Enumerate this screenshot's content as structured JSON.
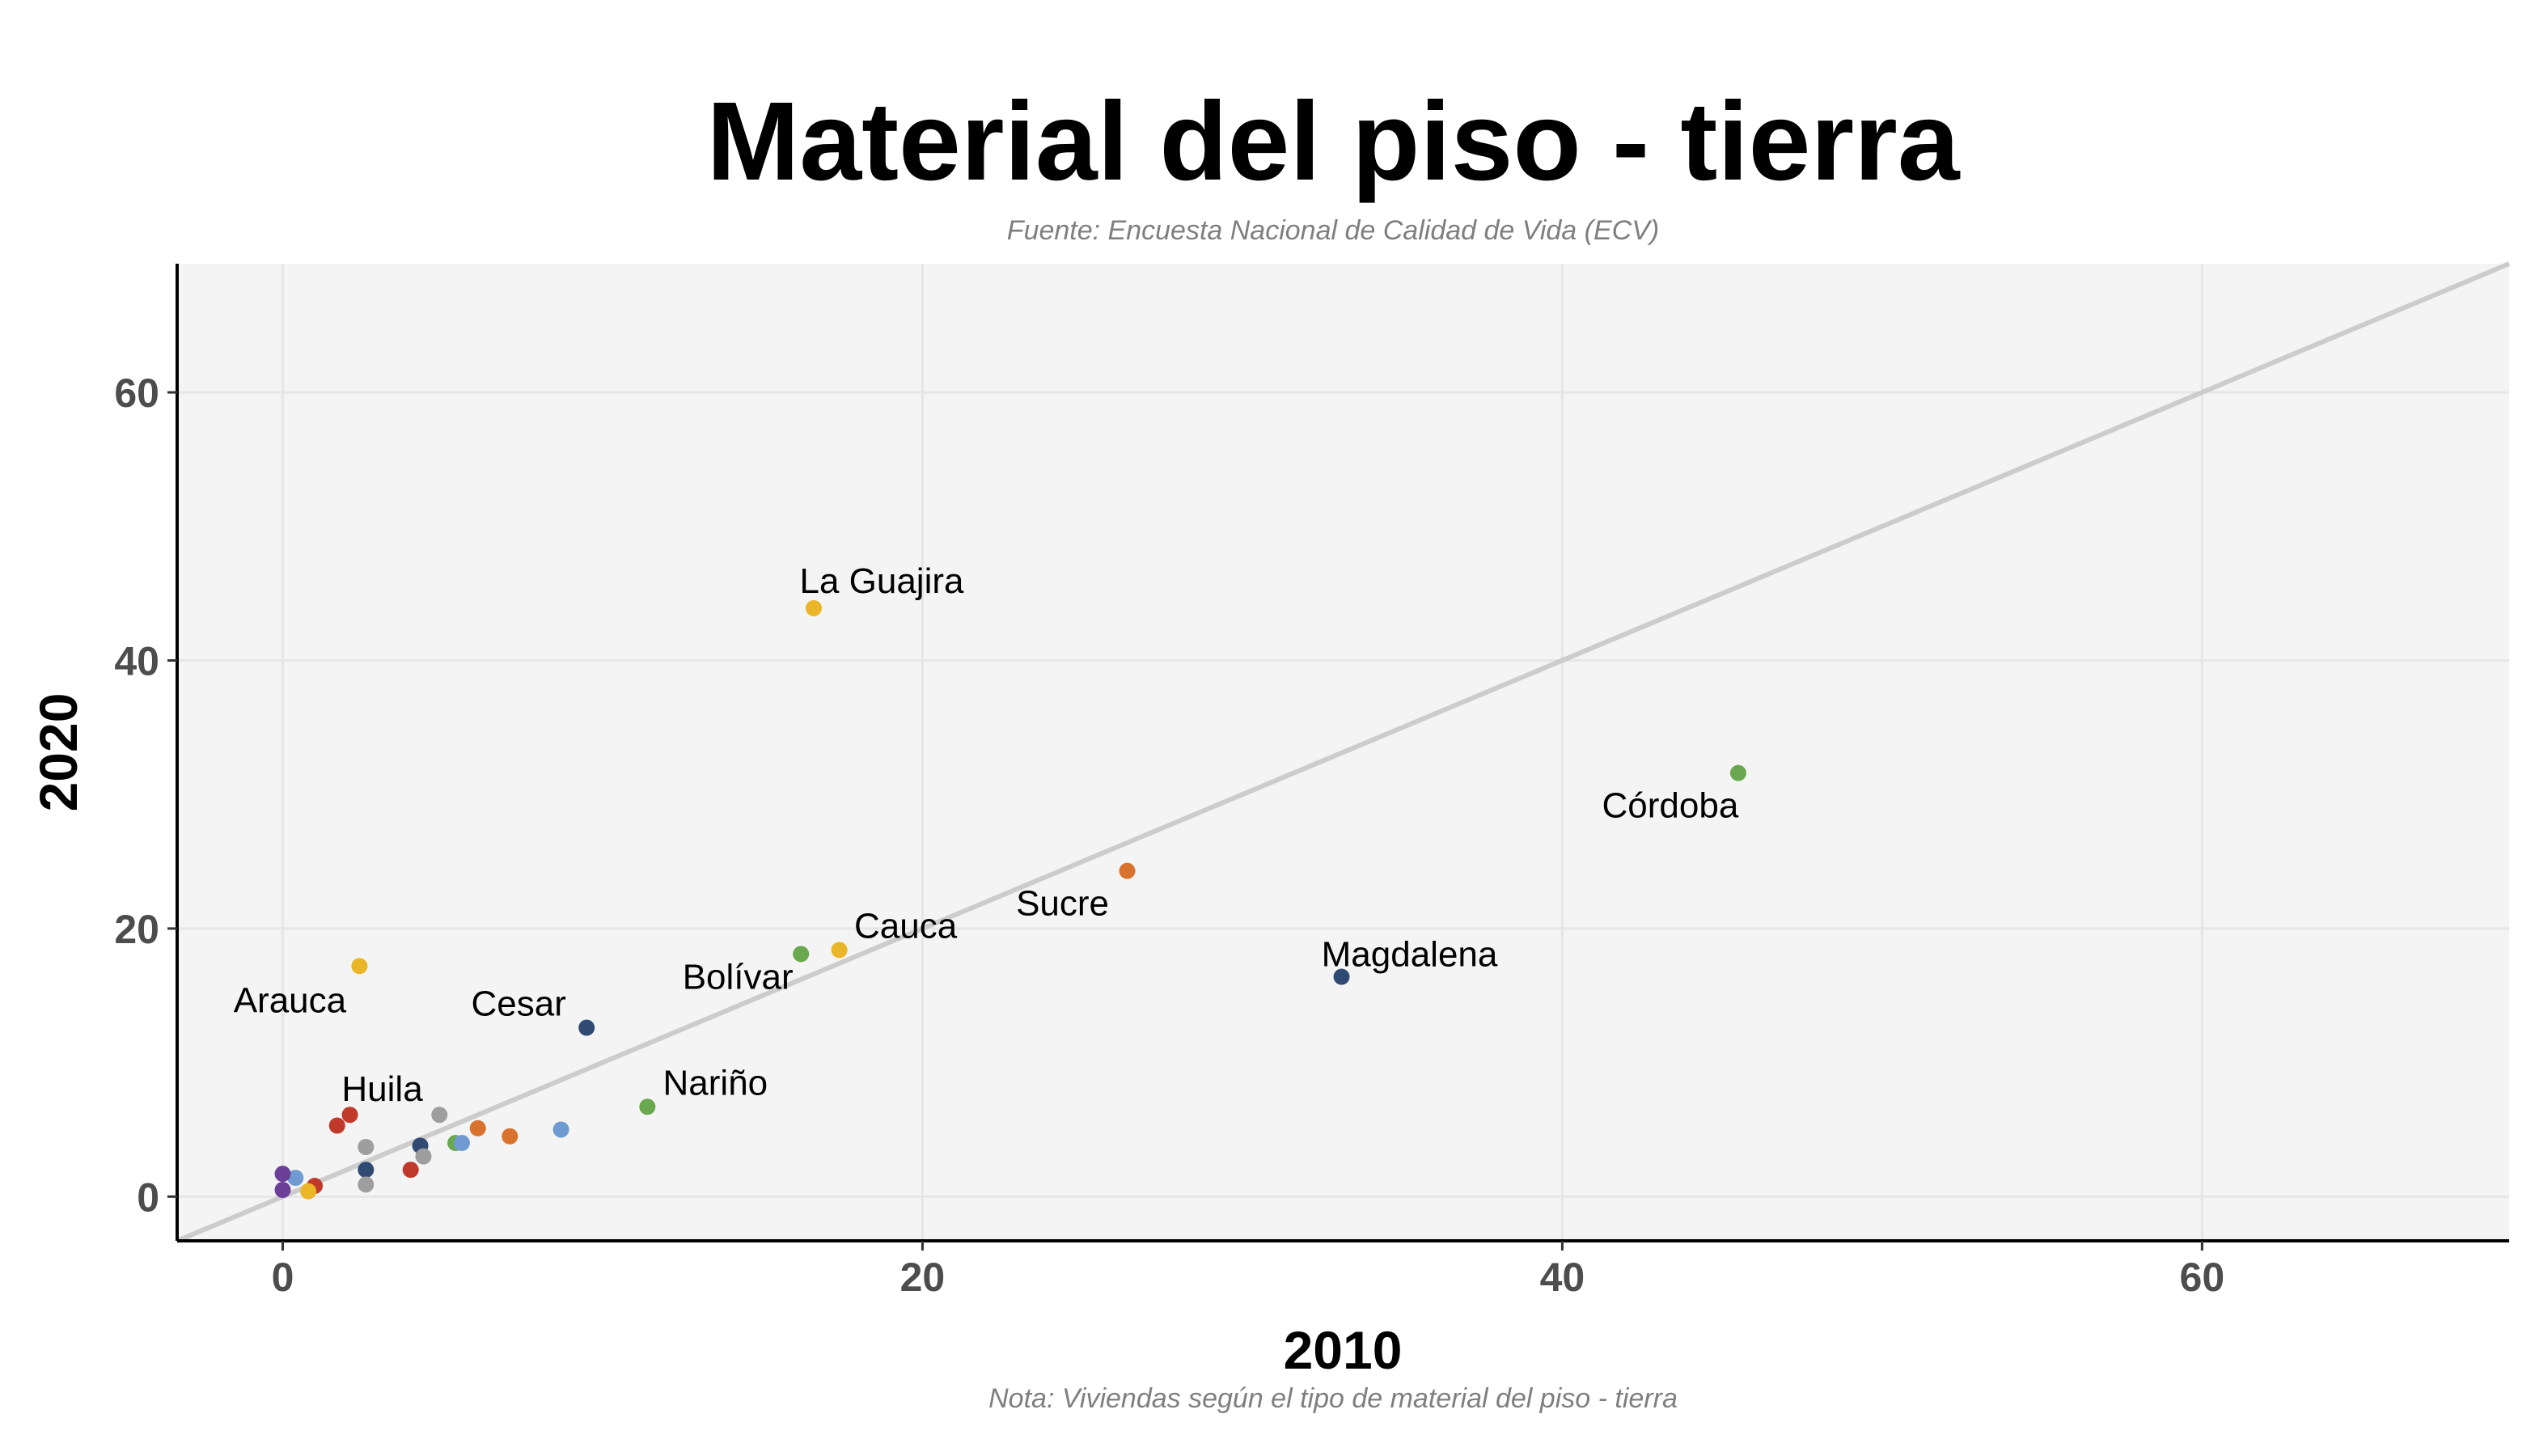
{
  "chart_data": {
    "type": "scatter",
    "title": "Material del piso - tierra",
    "subtitle": "Fuente: Encuesta Nacional de Calidad de Vida (ECV)",
    "caption": "Nota: Viviendas según el tipo de material del piso - tierra",
    "xlabel": "2010",
    "ylabel": "2020",
    "xlim": [
      -3.3,
      69.6
    ],
    "ylim": [
      -3.3,
      69.6
    ],
    "xticks": [
      0,
      20,
      40,
      60
    ],
    "yticks": [
      0,
      20,
      40,
      60
    ],
    "grid": true,
    "reference_line": {
      "slope": 1,
      "intercept": 0,
      "color": "#cccccc"
    },
    "background": "#f4f4f4",
    "points": [
      {
        "x": 16.6,
        "y": 43.9,
        "label": "La Guajira",
        "color": "#eab627"
      },
      {
        "x": 45.5,
        "y": 31.6,
        "label": "Córdoba",
        "color": "#6aa84f"
      },
      {
        "x": 26.4,
        "y": 24.3,
        "label": "Sucre",
        "color": "#d9722c"
      },
      {
        "x": 17.4,
        "y": 18.4,
        "label": "Cauca",
        "color": "#eab627"
      },
      {
        "x": 16.2,
        "y": 18.1,
        "label": "Bolívar",
        "color": "#6aa84f"
      },
      {
        "x": 33.1,
        "y": 16.4,
        "label": "Magdalena",
        "color": "#2f4b73"
      },
      {
        "x": 2.4,
        "y": 17.2,
        "label": "Arauca",
        "color": "#eab627"
      },
      {
        "x": 9.5,
        "y": 12.6,
        "label": "Cesar",
        "color": "#2f4b73"
      },
      {
        "x": 11.4,
        "y": 6.7,
        "label": "Nariño",
        "color": "#6aa84f"
      },
      {
        "x": 2.1,
        "y": 6.1,
        "label": "Huila",
        "color": "#c0392b"
      },
      {
        "x": 1.7,
        "y": 5.3,
        "label": "",
        "color": "#c0392b"
      },
      {
        "x": 4.9,
        "y": 6.1,
        "label": "",
        "color": "#9e9e9e"
      },
      {
        "x": 6.1,
        "y": 5.1,
        "label": "",
        "color": "#d9722c"
      },
      {
        "x": 7.1,
        "y": 4.5,
        "label": "",
        "color": "#d9722c"
      },
      {
        "x": 8.7,
        "y": 5.0,
        "label": "",
        "color": "#6f9bd2"
      },
      {
        "x": 5.4,
        "y": 4.0,
        "label": "",
        "color": "#6aa84f"
      },
      {
        "x": 5.6,
        "y": 4.0,
        "label": "",
        "color": "#6f9bd2"
      },
      {
        "x": 4.3,
        "y": 3.8,
        "label": "",
        "color": "#2f4b73"
      },
      {
        "x": 4.4,
        "y": 3.0,
        "label": "",
        "color": "#9e9e9e"
      },
      {
        "x": 2.6,
        "y": 3.7,
        "label": "",
        "color": "#9e9e9e"
      },
      {
        "x": 2.6,
        "y": 2.0,
        "label": "",
        "color": "#2f4b73"
      },
      {
        "x": 4.0,
        "y": 2.0,
        "label": "",
        "color": "#c0392b"
      },
      {
        "x": 2.6,
        "y": 0.9,
        "label": "",
        "color": "#9e9e9e"
      },
      {
        "x": 0.4,
        "y": 1.4,
        "label": "",
        "color": "#6f9bd2"
      },
      {
        "x": 1.0,
        "y": 0.8,
        "label": "",
        "color": "#c0392b"
      },
      {
        "x": 0.8,
        "y": 0.4,
        "label": "",
        "color": "#eab627"
      },
      {
        "x": 0.0,
        "y": 1.7,
        "label": "",
        "color": "#6b3f98"
      },
      {
        "x": 0.0,
        "y": 0.5,
        "label": "",
        "color": "#6b3f98"
      }
    ]
  }
}
